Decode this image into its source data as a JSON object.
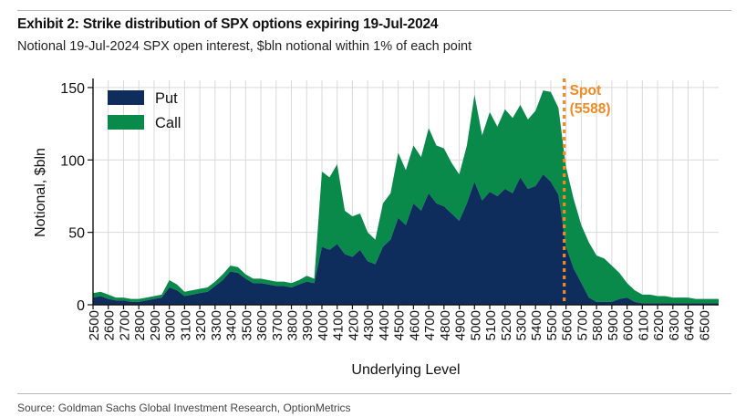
{
  "header": {
    "title": "Exhibit 2: Strike distribution of SPX options expiring 19-Jul-2024",
    "subtitle": "Notional 19-Jul-2024 SPX open interest, $bln notional within 1% of each point"
  },
  "footer": {
    "source": "Source: Goldman Sachs Global Investment Research, OptionMetrics"
  },
  "chart_data": {
    "type": "area",
    "stacked": true,
    "xlabel": "Underlying Level",
    "ylabel": "Notional, $bln",
    "xlim": [
      2500,
      6600
    ],
    "ylim": [
      0,
      155
    ],
    "yticks": [
      0,
      50,
      100,
      150
    ],
    "xticks": [
      2500,
      2600,
      2700,
      2800,
      2900,
      3000,
      3100,
      3200,
      3300,
      3400,
      3500,
      3600,
      3700,
      3800,
      3900,
      4000,
      4100,
      4200,
      4300,
      4400,
      4500,
      4600,
      4700,
      4800,
      4900,
      5000,
      5100,
      5200,
      5300,
      5400,
      5500,
      5600,
      5700,
      5800,
      5900,
      6000,
      6100,
      6200,
      6300,
      6400,
      6500
    ],
    "grid": true,
    "legend": {
      "position": "top-left",
      "entries": [
        "Put",
        "Call"
      ]
    },
    "colors": {
      "put": "#0e2d5c",
      "call": "#0a8a4a",
      "spot": "#f08a24",
      "grid": "#d9d9d9"
    },
    "annotation": {
      "label_line1": "Spot",
      "label_line2": "(5588)",
      "x": 5588
    },
    "x": [
      2500,
      2550,
      2600,
      2650,
      2700,
      2750,
      2800,
      2850,
      2900,
      2950,
      3000,
      3050,
      3100,
      3150,
      3200,
      3250,
      3300,
      3350,
      3400,
      3450,
      3500,
      3550,
      3600,
      3650,
      3700,
      3750,
      3800,
      3850,
      3900,
      3950,
      4000,
      4050,
      4100,
      4150,
      4200,
      4250,
      4300,
      4350,
      4400,
      4450,
      4500,
      4550,
      4600,
      4650,
      4700,
      4750,
      4800,
      4850,
      4900,
      4950,
      5000,
      5050,
      5100,
      5150,
      5200,
      5250,
      5300,
      5350,
      5400,
      5450,
      5500,
      5550,
      5600,
      5650,
      5700,
      5750,
      5800,
      5850,
      5900,
      5950,
      6000,
      6050,
      6100,
      6150,
      6200,
      6250,
      6300,
      6350,
      6400,
      6450,
      6500,
      6550,
      6600
    ],
    "series": [
      {
        "name": "Put",
        "values": [
          5,
          6,
          4,
          3,
          3,
          2,
          2,
          3,
          4,
          5,
          12,
          10,
          6,
          7,
          8,
          9,
          13,
          17,
          23,
          22,
          18,
          15,
          15,
          14,
          13,
          13,
          12,
          14,
          16,
          15,
          40,
          38,
          42,
          35,
          33,
          38,
          30,
          28,
          40,
          45,
          60,
          55,
          70,
          65,
          77,
          70,
          68,
          63,
          58,
          70,
          85,
          72,
          78,
          75,
          80,
          77,
          88,
          80,
          82,
          90,
          85,
          76,
          40,
          25,
          15,
          5,
          2,
          2,
          2,
          4,
          5,
          2,
          1,
          1,
          1,
          1,
          1,
          1,
          1,
          1,
          1,
          1,
          1
        ]
      },
      {
        "name": "Call",
        "values": [
          3,
          3,
          3,
          2,
          2,
          2,
          2,
          2,
          2,
          2,
          5,
          4,
          3,
          3,
          3,
          3,
          3,
          4,
          4,
          4,
          3,
          3,
          3,
          3,
          3,
          3,
          3,
          3,
          4,
          3,
          52,
          50,
          55,
          30,
          28,
          25,
          20,
          17,
          30,
          32,
          45,
          38,
          40,
          37,
          45,
          40,
          40,
          35,
          32,
          40,
          60,
          45,
          55,
          48,
          55,
          52,
          50,
          48,
          52,
          58,
          62,
          60,
          55,
          48,
          40,
          38,
          32,
          30,
          25,
          18,
          10,
          8,
          6,
          6,
          5,
          5,
          4,
          4,
          4,
          3,
          3,
          3,
          3
        ]
      }
    ]
  }
}
